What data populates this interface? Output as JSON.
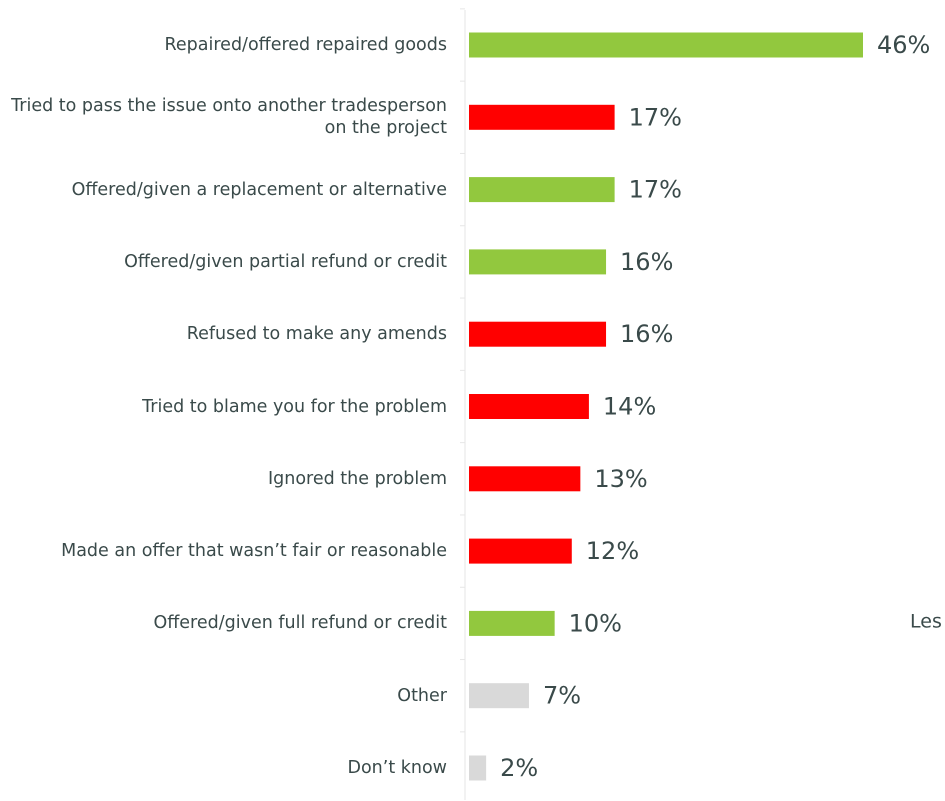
{
  "chart_data": {
    "type": "hbar",
    "categories": [
      "Repaired/offered repaired goods",
      "Tried to pass the issue onto another tradesperson on the project",
      "Offered/given a replacement or alternative",
      "Offered/given partial refund or credit",
      "Refused to make any amends",
      "Tried to blame you for the problem",
      "Ignored the problem",
      "Made an offer that wasn’t fair or reasonable",
      "Offered/given full refund or credit",
      "Other",
      "Don’t know"
    ],
    "values": [
      46,
      17,
      17,
      16,
      16,
      14,
      13,
      12,
      10,
      7,
      2
    ],
    "value_labels": [
      "46%",
      "17%",
      "17%",
      "16%",
      "16%",
      "14%",
      "13%",
      "12%",
      "10%",
      "7%",
      "2%"
    ],
    "colors": [
      "#92c83e",
      "#ff0000",
      "#92c83e",
      "#92c83e",
      "#ff0000",
      "#ff0000",
      "#ff0000",
      "#ff0000",
      "#92c83e",
      "#d9d9d9",
      "#d9d9d9"
    ],
    "annotation": "Les"
  }
}
